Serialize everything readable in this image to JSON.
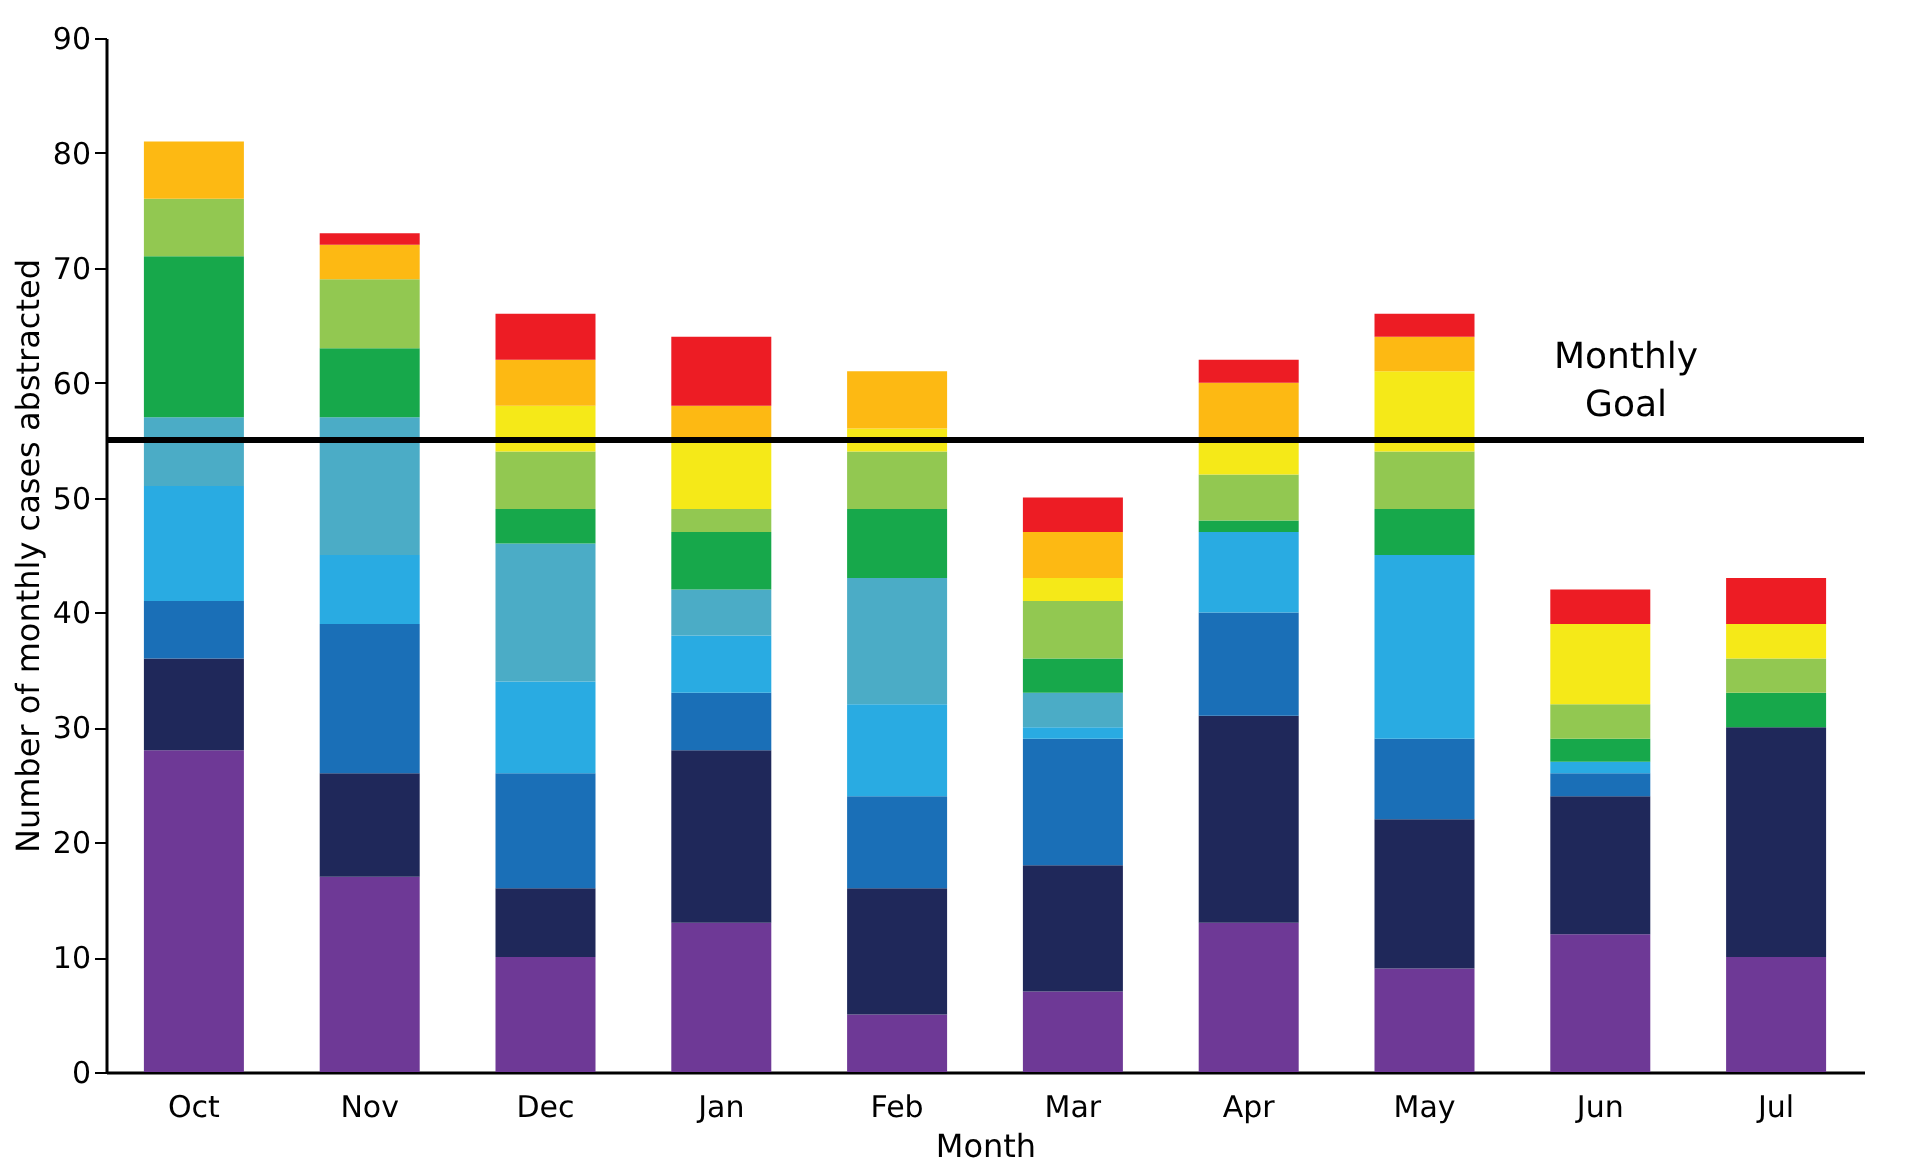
{
  "chart_data": {
    "type": "bar",
    "stacked": true,
    "xlabel": "Month",
    "ylabel": "Number of monthly cases abstracted",
    "categories": [
      "Oct",
      "Nov",
      "Dec",
      "Jan",
      "Feb",
      "Mar",
      "Apr",
      "May",
      "Jun",
      "Jul"
    ],
    "series": [
      {
        "color": "#6e3996",
        "values": [
          28,
          17,
          10,
          13,
          5,
          7,
          13,
          9,
          12,
          10
        ]
      },
      {
        "color": "#1f285a",
        "values": [
          8,
          9,
          6,
          15,
          11,
          11,
          18,
          13,
          12,
          20
        ]
      },
      {
        "color": "#1a6fb7",
        "values": [
          5,
          13,
          10,
          5,
          8,
          11,
          9,
          7,
          2,
          0
        ]
      },
      {
        "color": "#29abe2",
        "values": [
          10,
          6,
          8,
          5,
          8,
          1,
          7,
          16,
          1,
          0
        ]
      },
      {
        "color": "#4bacc6",
        "values": [
          6,
          12,
          12,
          4,
          11,
          3,
          0,
          0,
          0,
          0
        ]
      },
      {
        "color": "#17a84b",
        "values": [
          14,
          6,
          3,
          5,
          6,
          3,
          1,
          4,
          2,
          3
        ]
      },
      {
        "color": "#92c851",
        "values": [
          5,
          6,
          5,
          2,
          5,
          5,
          4,
          5,
          3,
          3
        ]
      },
      {
        "color": "#f5e918",
        "values": [
          0,
          0,
          4,
          6,
          2,
          2,
          3,
          7,
          7,
          3
        ]
      },
      {
        "color": "#fdb913",
        "values": [
          5,
          3,
          4,
          3,
          5,
          4,
          5,
          3,
          0,
          0
        ]
      },
      {
        "color": "#ed1c24",
        "values": [
          0,
          1,
          4,
          6,
          0,
          3,
          2,
          2,
          3,
          4
        ]
      }
    ],
    "ylim": [
      0,
      90
    ],
    "yticks": [
      0,
      10,
      20,
      30,
      40,
      50,
      60,
      70,
      80,
      90
    ],
    "grid": false,
    "legend": false,
    "ref_lines": [
      {
        "axis": "y",
        "value": 55,
        "label": "Monthly Goal",
        "color": "#000000"
      }
    ]
  }
}
